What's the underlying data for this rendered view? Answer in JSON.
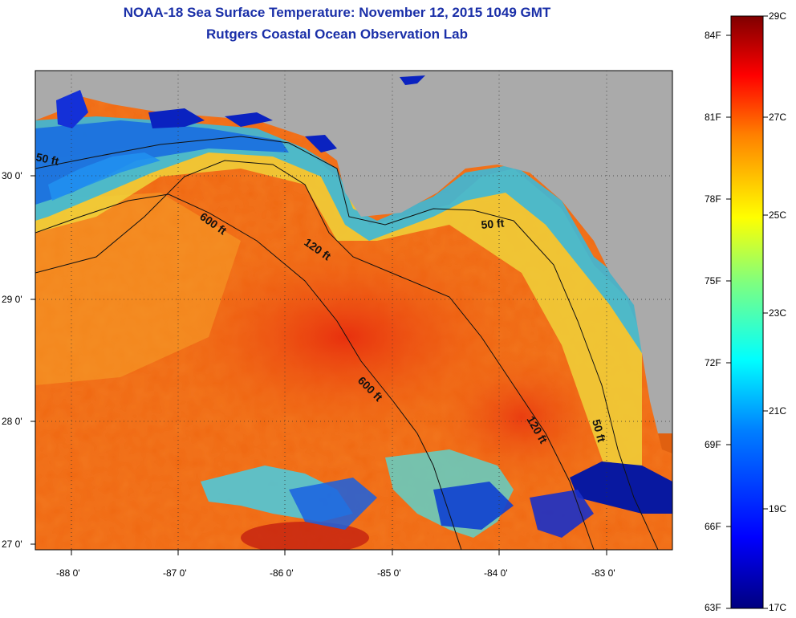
{
  "title": "NOAA-18 Sea Surface Temperature:  November 12, 2015 1049 GMT",
  "subtitle": "Rutgers Coastal Ocean Observation Lab",
  "lat_labels": [
    "30 0'",
    "29 0'",
    "28 0'",
    "27 0'"
  ],
  "lon_labels": [
    "-88 0'",
    "-87 0'",
    "-86 0'",
    "-85 0'",
    "-84 0'",
    "-83 0'"
  ],
  "contour_labels": [
    "50 ft",
    "600 ft",
    "120 ft",
    "50 ft",
    "600 ft",
    "120 ft",
    "50 ft"
  ],
  "colorbar": {
    "fahrenheit": [
      "84F",
      "81F",
      "78F",
      "75F",
      "72F",
      "69F",
      "66F",
      "63F"
    ],
    "celsius": [
      "29C",
      "27C",
      "25C",
      "23C",
      "21C",
      "19C",
      "17C"
    ],
    "colors": [
      "#00007f",
      "#0000ff",
      "#007fff",
      "#00ffff",
      "#7fff7f",
      "#ffff00",
      "#ff7f00",
      "#ff0000",
      "#7f0000"
    ]
  },
  "colors": {
    "land": "#aaaaaa",
    "title": "#1a2fa8",
    "warm_sea": "#f06a14",
    "coastal_cool": "#2aa8e0"
  }
}
